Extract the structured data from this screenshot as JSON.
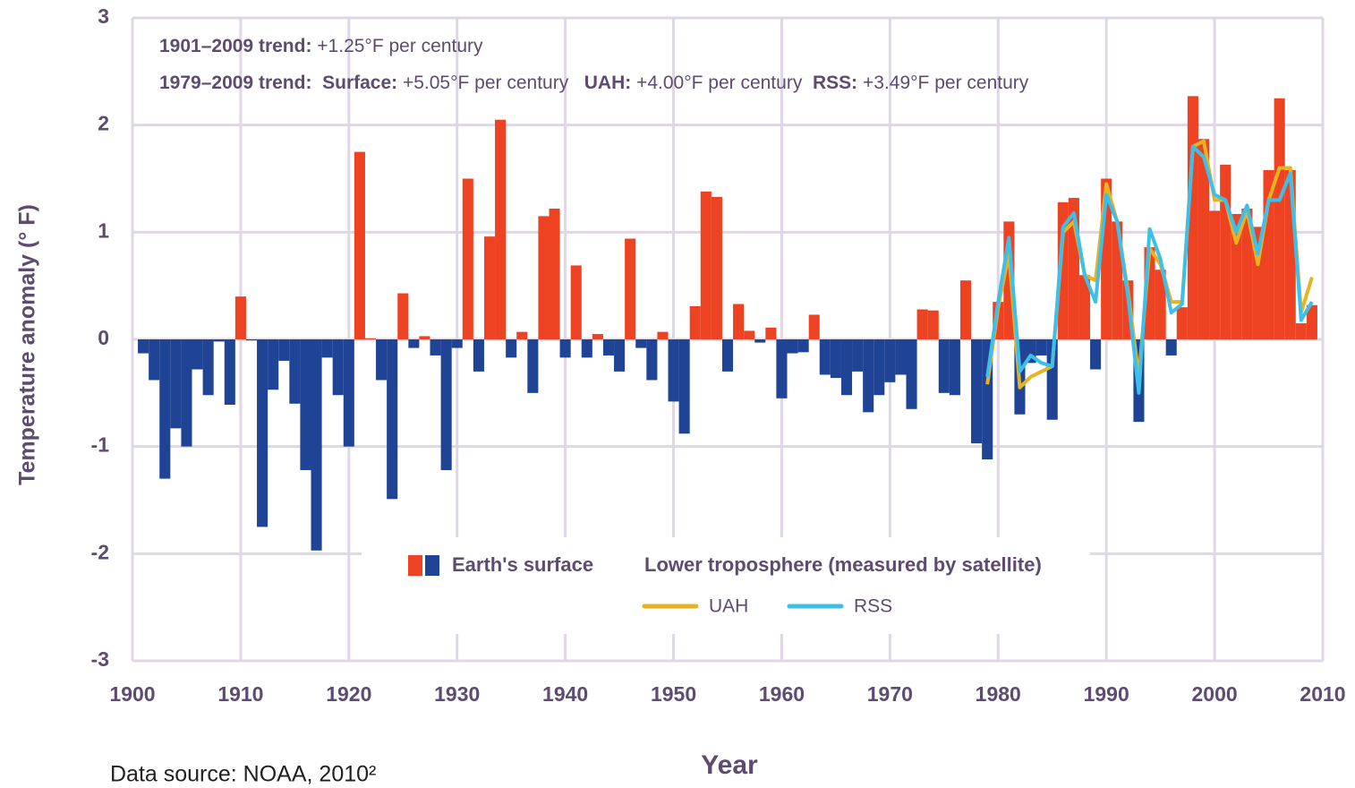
{
  "chart_data": {
    "type": "bar",
    "annotations": [
      [
        {
          "text": "1901–2009 trend:",
          "bold": true
        },
        {
          "text": " +1.25°F per century",
          "bold": false
        }
      ],
      [
        {
          "text": "1979–2009 trend:  Surface:",
          "bold": true
        },
        {
          "text": " +5.05°F per century   ",
          "bold": false
        },
        {
          "text": "UAH:",
          "bold": true
        },
        {
          "text": " +4.00°F per century  ",
          "bold": false
        },
        {
          "text": "RSS:",
          "bold": true
        },
        {
          "text": " +3.49°F per century",
          "bold": false
        }
      ]
    ],
    "x_label": "Year",
    "y_label": "Temperature anomaly (° F)",
    "source": "Data source: NOAA, 2010²",
    "legend_title": "Lower troposphere (measured by satellite)",
    "xlim": [
      1900,
      2010
    ],
    "ylim": [
      -3,
      3
    ],
    "xticks": [
      1900,
      1910,
      1920,
      1930,
      1940,
      1950,
      1960,
      1970,
      1980,
      1990,
      2000,
      2010
    ],
    "yticks": [
      -3,
      -2,
      -1,
      0,
      1,
      2,
      3
    ],
    "grid": true,
    "x": [
      1901,
      1902,
      1903,
      1904,
      1905,
      1906,
      1907,
      1908,
      1909,
      1910,
      1911,
      1912,
      1913,
      1914,
      1915,
      1916,
      1917,
      1918,
      1919,
      1920,
      1921,
      1922,
      1923,
      1924,
      1925,
      1926,
      1927,
      1928,
      1929,
      1930,
      1931,
      1932,
      1933,
      1934,
      1935,
      1936,
      1937,
      1938,
      1939,
      1940,
      1941,
      1942,
      1943,
      1944,
      1945,
      1946,
      1947,
      1948,
      1949,
      1950,
      1951,
      1952,
      1953,
      1954,
      1955,
      1956,
      1957,
      1958,
      1959,
      1960,
      1961,
      1962,
      1963,
      1964,
      1965,
      1966,
      1967,
      1968,
      1969,
      1970,
      1971,
      1972,
      1973,
      1974,
      1975,
      1976,
      1977,
      1978,
      1979,
      1980,
      1981,
      1982,
      1983,
      1984,
      1985,
      1986,
      1987,
      1988,
      1989,
      1990,
      1991,
      1992,
      1993,
      1994,
      1995,
      1996,
      1997,
      1998,
      1999,
      2000,
      2001,
      2002,
      2003,
      2004,
      2005,
      2006,
      2007,
      2008,
      2009
    ],
    "series": [
      {
        "name": "Earth's surface",
        "type": "bar",
        "color": "#ee4323",
        "negative_color": "#1f4496",
        "values": [
          -0.13,
          -0.38,
          -1.3,
          -0.83,
          -1.0,
          -0.28,
          -0.52,
          -0.02,
          -0.61,
          0.4,
          -0.01,
          -1.75,
          -0.47,
          -0.2,
          -0.6,
          -1.22,
          -1.97,
          -0.17,
          -0.52,
          -1.0,
          1.75,
          0.01,
          -0.38,
          -1.49,
          0.43,
          -0.08,
          0.03,
          -0.15,
          -1.22,
          -0.08,
          1.5,
          -0.3,
          0.96,
          2.05,
          -0.17,
          0.07,
          -0.5,
          1.15,
          1.22,
          -0.17,
          0.69,
          -0.17,
          0.05,
          -0.15,
          -0.3,
          0.94,
          -0.08,
          -0.38,
          0.07,
          -0.58,
          -0.88,
          0.31,
          1.38,
          1.33,
          -0.3,
          0.33,
          0.08,
          -0.03,
          0.11,
          -0.55,
          -0.13,
          -0.12,
          0.23,
          -0.33,
          -0.36,
          -0.52,
          -0.3,
          -0.68,
          -0.52,
          -0.4,
          -0.33,
          -0.65,
          0.28,
          0.27,
          -0.5,
          -0.52,
          0.55,
          -0.97,
          -1.12,
          0.35,
          1.1,
          -0.7,
          -0.22,
          -0.15,
          -0.75,
          1.28,
          1.32,
          0.6,
          -0.28,
          1.5,
          1.1,
          0.55,
          -0.77,
          0.86,
          0.65,
          -0.15,
          0.3,
          2.27,
          1.87,
          1.2,
          1.63,
          1.17,
          1.22,
          1.05,
          1.58,
          2.25,
          1.58,
          0.15,
          0.32
        ]
      },
      {
        "name": "UAH",
        "type": "line",
        "color": "#e8b321",
        "x": [
          1979,
          1980,
          1981,
          1982,
          1983,
          1984,
          1985,
          1986,
          1987,
          1988,
          1989,
          1990,
          1991,
          1992,
          1993,
          1994,
          1995,
          1996,
          1997,
          1998,
          1999,
          2000,
          2001,
          2002,
          2003,
          2004,
          2005,
          2006,
          2007,
          2008,
          2009
        ],
        "values": [
          -0.42,
          0.3,
          0.8,
          -0.45,
          -0.35,
          -0.3,
          -0.25,
          1.0,
          1.1,
          0.6,
          0.55,
          1.45,
          1.1,
          0.45,
          -0.35,
          0.85,
          0.7,
          0.35,
          0.35,
          1.8,
          1.85,
          1.3,
          1.3,
          0.9,
          1.2,
          0.7,
          1.3,
          1.6,
          1.6,
          0.25,
          0.58
        ]
      },
      {
        "name": "RSS",
        "type": "line",
        "color": "#3cc0ea",
        "x": [
          1979,
          1980,
          1981,
          1982,
          1983,
          1984,
          1985,
          1986,
          1987,
          1988,
          1989,
          1990,
          1991,
          1992,
          1993,
          1994,
          1995,
          1996,
          1997,
          1998,
          1999,
          2000,
          2001,
          2002,
          2003,
          2004,
          2005,
          2006,
          2007,
          2008,
          2009
        ],
        "values": [
          -0.35,
          0.35,
          0.95,
          -0.3,
          -0.15,
          -0.22,
          -0.25,
          1.05,
          1.18,
          0.6,
          0.35,
          1.35,
          1.1,
          0.4,
          -0.5,
          1.03,
          0.75,
          0.25,
          0.33,
          1.8,
          1.7,
          1.35,
          1.3,
          1.0,
          1.25,
          0.8,
          1.3,
          1.3,
          1.55,
          0.18,
          0.35
        ]
      }
    ]
  }
}
